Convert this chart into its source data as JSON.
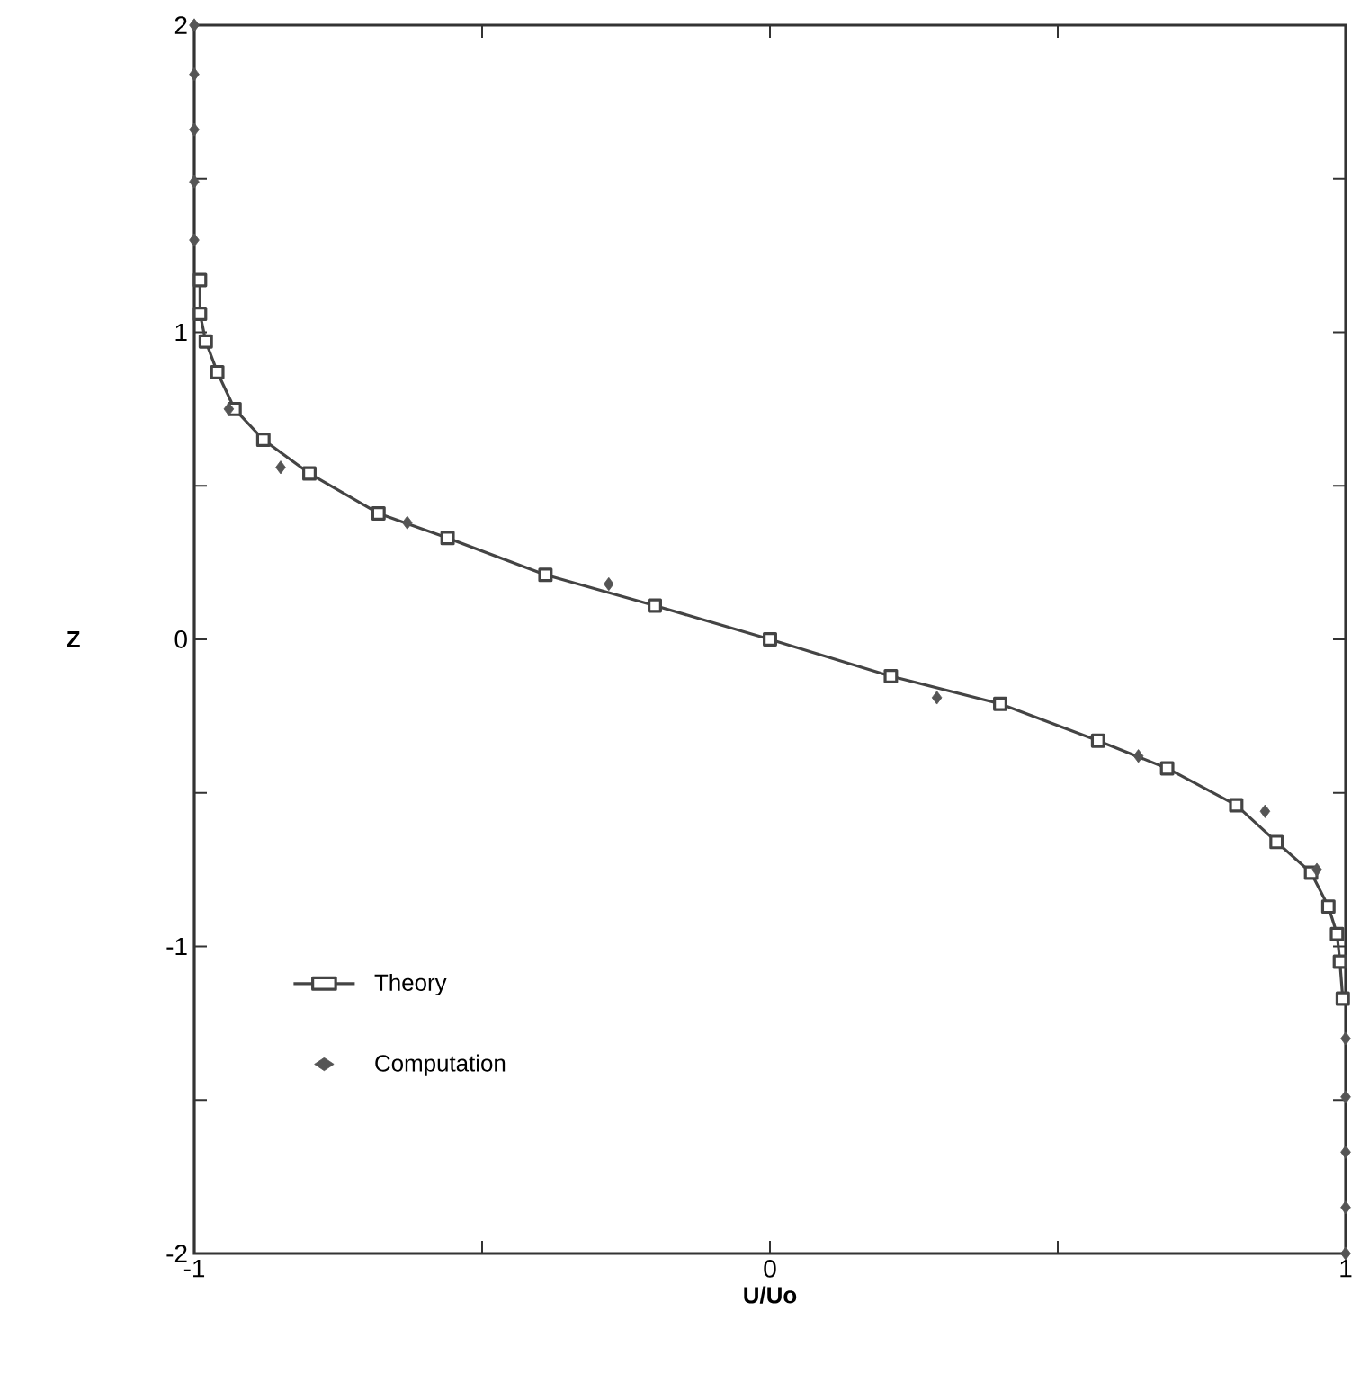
{
  "chart_data": {
    "type": "line",
    "xlabel": "U/Uo",
    "ylabel": "Z",
    "xlim": [
      -1,
      1
    ],
    "ylim": [
      -2,
      2
    ],
    "xticks": [
      -1,
      {
        "value": -0.5,
        "label": null
      },
      0,
      {
        "value": 0.5,
        "label": null
      },
      1
    ],
    "yticks": [
      -2,
      {
        "value": -1.5,
        "label": null
      },
      -1,
      {
        "value": -0.5,
        "label": null
      },
      0,
      {
        "value": 0.5,
        "label": null
      },
      1,
      {
        "value": 1.5,
        "label": null
      },
      2
    ],
    "grid": false,
    "legend": "bottom left",
    "series": [
      {
        "name": "Theory",
        "marker": "square",
        "line_style": "solid",
        "color": "#444444",
        "x": [
          -0.99,
          -0.99,
          -0.98,
          -0.96,
          -0.93,
          -0.88,
          -0.8,
          -0.68,
          -0.56,
          -0.39,
          -0.2,
          0,
          0.21,
          0.4,
          0.57,
          0.69,
          0.81,
          0.88,
          0.94,
          0.97,
          0.985,
          0.99,
          0.995
        ],
        "values": [
          1.17,
          1.06,
          0.97,
          0.87,
          0.75,
          0.65,
          0.54,
          0.41,
          0.33,
          0.21,
          0.11,
          0,
          -0.12,
          -0.21,
          -0.33,
          -0.42,
          -0.54,
          -0.66,
          -0.76,
          -0.87,
          -0.96,
          -1.05,
          -1.17
        ]
      },
      {
        "name": "Computation",
        "type": "scatter",
        "marker": "diamond",
        "color": "#555555",
        "x": [
          -1,
          -1,
          -1,
          -1,
          -1,
          -0.94,
          -0.85,
          -0.63,
          -0.28,
          0.29,
          0.64,
          0.86,
          0.95,
          1,
          1,
          1,
          1,
          1
        ],
        "values": [
          2,
          1.84,
          1.66,
          1.49,
          1.3,
          0.75,
          0.56,
          0.38,
          0.18,
          -0.19,
          -0.38,
          -0.56,
          -0.75,
          -1.3,
          -1.49,
          -1.67,
          -1.85,
          -2
        ]
      }
    ]
  }
}
